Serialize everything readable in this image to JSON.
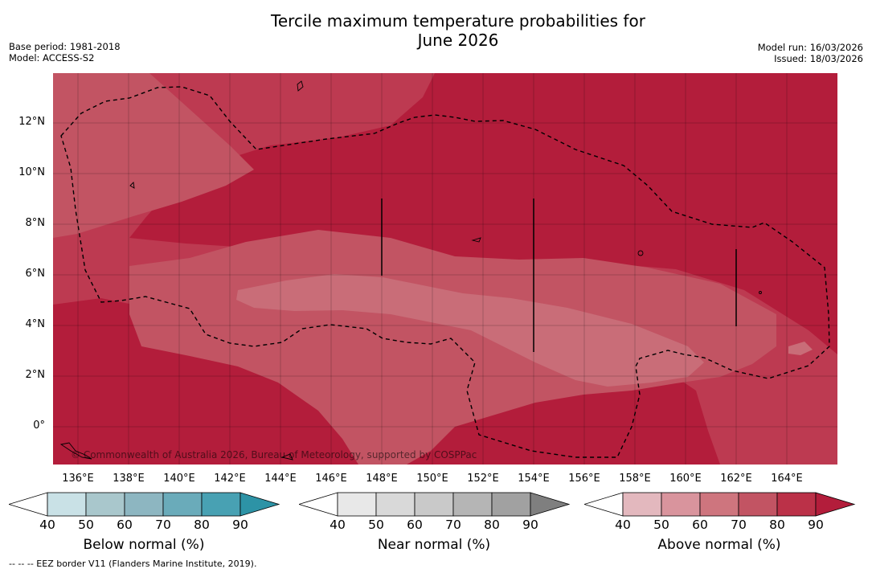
{
  "title_line1": "Tercile maximum temperature probabilities for",
  "title_line2": "June 2026",
  "base_period": "Base period: 1981-2018",
  "model": "Model: ACCESS-S2",
  "model_run": "Model run: 16/03/2026",
  "issued": "Issued: 18/03/2026",
  "copyright": "© Commonwealth of Australia 2026, Bureau of Meteorology, supported by COSPPac",
  "footnote": "--  --  -- EEZ border V11 (Flanders Marine Institute, 2019).",
  "map": {
    "lat_labels": [
      "12°N",
      "10°N",
      "8°N",
      "6°N",
      "4°N",
      "2°N",
      "0°"
    ],
    "lon_labels": [
      "136°E",
      "138°E",
      "140°E",
      "142°E",
      "144°E",
      "146°E",
      "148°E",
      "150°E",
      "152°E",
      "154°E",
      "156°E",
      "158°E",
      "160°E",
      "162°E",
      "164°E"
    ],
    "colors": {
      "above_90": "#b31d3b",
      "above_80": "#bd3a51",
      "above_70": "#c25463",
      "above_60": "#c96d78"
    }
  },
  "colorbars": [
    {
      "label": "Below normal (%)",
      "ticks": [
        "40",
        "50",
        "60",
        "70",
        "80",
        "90"
      ],
      "colors": [
        "#ffffff",
        "#c9e1e6",
        "#a9c7cc",
        "#8db6c1",
        "#6aabba",
        "#48a1b3",
        "#2d93a6"
      ]
    },
    {
      "label": "Near normal (%)",
      "ticks": [
        "40",
        "50",
        "60",
        "70",
        "80",
        "90"
      ],
      "colors": [
        "#ffffff",
        "#e8e8e8",
        "#d9d9d9",
        "#c9c9c9",
        "#b5b5b5",
        "#a1a1a1",
        "#7f7f7f"
      ]
    },
    {
      "label": "Above normal (%)",
      "ticks": [
        "40",
        "50",
        "60",
        "70",
        "80",
        "90"
      ],
      "colors": [
        "#ffffff",
        "#e3b8be",
        "#d9949d",
        "#ce757e",
        "#c25463",
        "#bb3148",
        "#b31d3b"
      ]
    }
  ]
}
